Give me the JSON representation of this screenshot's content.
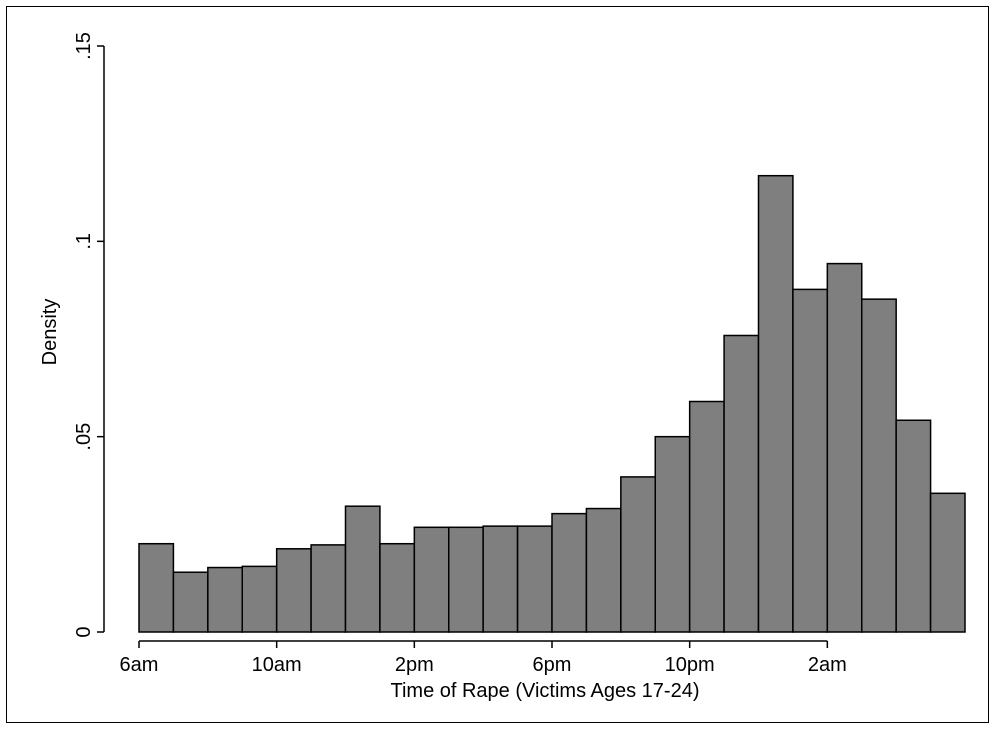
{
  "chart_data": {
    "type": "bar",
    "xlabel": "Time of Rape (Victims Ages 17-24)",
    "ylabel": "Density",
    "ylim": [
      0,
      0.15
    ],
    "yticks": [
      {
        "value": 0,
        "label": "0"
      },
      {
        "value": 0.05,
        "label": ".05"
      },
      {
        "value": 0.1,
        "label": ".1"
      },
      {
        "value": 0.15,
        "label": ".15"
      }
    ],
    "xticks": [
      {
        "bin": 0,
        "label": "6am"
      },
      {
        "bin": 4,
        "label": "10am"
      },
      {
        "bin": 8,
        "label": "2pm"
      },
      {
        "bin": 12,
        "label": "6pm"
      },
      {
        "bin": 16,
        "label": "10pm"
      },
      {
        "bin": 20,
        "label": "2am"
      }
    ],
    "bin_count": 24,
    "values": [
      0.0226,
      0.0153,
      0.0165,
      0.0168,
      0.0213,
      0.0223,
      0.0322,
      0.0226,
      0.0268,
      0.0268,
      0.0271,
      0.0271,
      0.0303,
      0.0316,
      0.0397,
      0.05,
      0.059,
      0.0759,
      0.1168,
      0.0877,
      0.0943,
      0.0852,
      0.0542,
      0.0355
    ],
    "bar_color": "#7f7f7f",
    "bar_edge_color": "#000000",
    "grid": false,
    "legend": "none"
  }
}
